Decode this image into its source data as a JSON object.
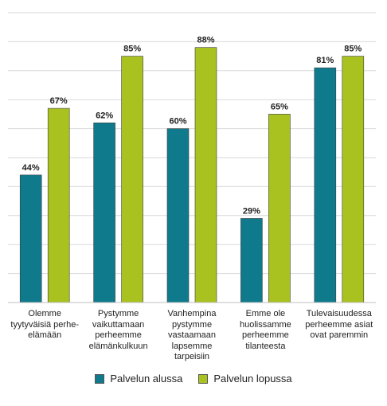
{
  "chart_data": {
    "type": "bar",
    "categories": [
      "Olemme tyytyväisiä perhe-elämään",
      "Pystymme vaikuttamaan perheemme elämänkulkuun",
      "Vanhempina pystymme vastaamaan lapsemme tarpeisiin",
      "Emme ole huolissamme perheemme tilanteesta",
      "Tulevaisuudessa perheemme asiat ovat paremmin"
    ],
    "category_lines": [
      [
        "Olemme",
        "tyytyväisiä perhe-",
        "elämään"
      ],
      [
        "Pystymme",
        "vaikuttamaan",
        "perheemme",
        "elämänkulkuun"
      ],
      [
        "Vanhempina",
        "pystymme",
        "vastaamaan",
        "lapsemme",
        "tarpeisiin"
      ],
      [
        "Emme ole",
        "huolissamme",
        "perheemme",
        "tilanteesta"
      ],
      [
        "Tulevaisuudessa",
        "perheemme asiat",
        "ovat paremmin"
      ]
    ],
    "series": [
      {
        "name": "Palvelun alussa",
        "values": [
          44,
          62,
          60,
          29,
          81
        ],
        "labels": [
          "44%",
          "62%",
          "60%",
          "29%",
          "81%"
        ],
        "color": "#0e7a8c"
      },
      {
        "name": "Palvelun lopussa",
        "values": [
          67,
          85,
          88,
          65,
          85
        ],
        "labels": [
          "67%",
          "85%",
          "88%",
          "65%",
          "85%"
        ],
        "color": "#a9c21f"
      }
    ],
    "ylim": [
      0,
      100
    ],
    "grid": true,
    "legend_position": "bottom"
  }
}
